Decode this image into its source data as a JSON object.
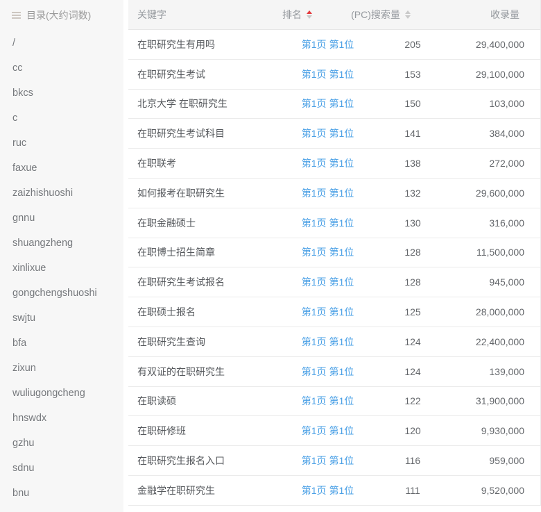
{
  "sidebar": {
    "title": "目录(大约词数)",
    "items": [
      "/",
      "cc",
      "bkcs",
      "c",
      "ruc",
      "faxue",
      "zaizhishuoshi",
      "gnnu",
      "shuangzheng",
      "xinlixue",
      "gongchengshuoshi",
      "swjtu",
      "bfa",
      "zixun",
      "wuliugongcheng",
      "hnswdx",
      "gzhu",
      "sdnu",
      "bnu"
    ]
  },
  "table": {
    "headers": {
      "keyword": "关键字",
      "rank": "排名",
      "search_volume": "(PC)搜索量",
      "indexed": "收录量"
    },
    "sort_state": {
      "rank": "asc",
      "search_volume": "none"
    },
    "rows": [
      {
        "keyword": "在职研究生有用吗",
        "rank": "第1页 第1位",
        "search_volume": "205",
        "indexed": "29,400,000"
      },
      {
        "keyword": "在职研究生考试",
        "rank": "第1页 第1位",
        "search_volume": "153",
        "indexed": "29,100,000"
      },
      {
        "keyword": "北京大学 在职研究生",
        "rank": "第1页 第1位",
        "search_volume": "150",
        "indexed": "103,000"
      },
      {
        "keyword": "在职研究生考试科目",
        "rank": "第1页 第1位",
        "search_volume": "141",
        "indexed": "384,000"
      },
      {
        "keyword": "在职联考",
        "rank": "第1页 第1位",
        "search_volume": "138",
        "indexed": "272,000"
      },
      {
        "keyword": "如何报考在职研究生",
        "rank": "第1页 第1位",
        "search_volume": "132",
        "indexed": "29,600,000"
      },
      {
        "keyword": "在职金融硕士",
        "rank": "第1页 第1位",
        "search_volume": "130",
        "indexed": "316,000"
      },
      {
        "keyword": "在职博士招生简章",
        "rank": "第1页 第1位",
        "search_volume": "128",
        "indexed": "11,500,000"
      },
      {
        "keyword": "在职研究生考试报名",
        "rank": "第1页 第1位",
        "search_volume": "128",
        "indexed": "945,000"
      },
      {
        "keyword": "在职硕士报名",
        "rank": "第1页 第1位",
        "search_volume": "125",
        "indexed": "28,000,000"
      },
      {
        "keyword": "在职研究生查询",
        "rank": "第1页 第1位",
        "search_volume": "124",
        "indexed": "22,400,000"
      },
      {
        "keyword": "有双证的在职研究生",
        "rank": "第1页 第1位",
        "search_volume": "124",
        "indexed": "139,000"
      },
      {
        "keyword": "在职读硕",
        "rank": "第1页 第1位",
        "search_volume": "122",
        "indexed": "31,900,000"
      },
      {
        "keyword": "在职研修班",
        "rank": "第1页 第1位",
        "search_volume": "120",
        "indexed": "9,930,000"
      },
      {
        "keyword": "在职研究生报名入口",
        "rank": "第1页 第1位",
        "search_volume": "116",
        "indexed": "959,000"
      },
      {
        "keyword": "金融学在职研究生",
        "rank": "第1页 第1位",
        "search_volume": "111",
        "indexed": "9,520,000"
      }
    ]
  },
  "colors": {
    "link": "#4aa0e6",
    "sort_active": "#e4393c",
    "sort_inactive": "#c9c9c9",
    "sidebar_bg": "#f7f7f7",
    "table_header_bg": "#f5f5f5",
    "row_border": "#ebebeb"
  }
}
